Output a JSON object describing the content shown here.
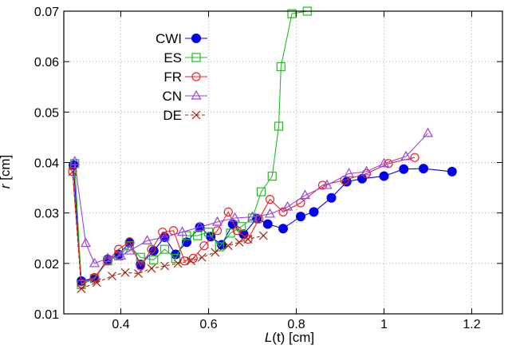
{
  "chart_data": {
    "type": "line",
    "xlabel_main": "L",
    "xlabel_arg": "(t)",
    "xlabel_unit": " [cm]",
    "ylabel_main": "r",
    "ylabel_unit": " [cm]",
    "xlim": [
      0.27,
      1.27
    ],
    "ylim": [
      0.01,
      0.07
    ],
    "x_ticks": [
      0.4,
      0.6,
      0.8,
      1.0,
      1.2
    ],
    "x_tick_labels": [
      "0.4",
      "0.6",
      "0.8",
      "1",
      "1.2"
    ],
    "y_ticks": [
      0.01,
      0.02,
      0.03,
      0.04,
      0.05,
      0.06,
      0.07
    ],
    "y_tick_labels": [
      "0.01",
      "0.02",
      "0.03",
      "0.04",
      "0.05",
      "0.06",
      "0.07"
    ],
    "grid": true,
    "legend_position": "top-left",
    "series": [
      {
        "name": "CWI",
        "color": "#0000ee",
        "marker": "filled-circle",
        "x": [
          0.292,
          0.31,
          0.34,
          0.37,
          0.395,
          0.42,
          0.445,
          0.475,
          0.5,
          0.525,
          0.55,
          0.58,
          0.605,
          0.63,
          0.655,
          0.68,
          0.71,
          0.735,
          0.77,
          0.81,
          0.84,
          0.88,
          0.915,
          0.95,
          1.0,
          1.045,
          1.09,
          1.155
        ],
        "y": [
          0.0395,
          0.0165,
          0.0171,
          0.0208,
          0.0218,
          0.0241,
          0.0198,
          0.0225,
          0.0252,
          0.0218,
          0.0242,
          0.0272,
          0.0253,
          0.0237,
          0.0278,
          0.0258,
          0.0289,
          0.0278,
          0.0269,
          0.0293,
          0.0302,
          0.033,
          0.0362,
          0.0368,
          0.0373,
          0.0387,
          0.0388,
          0.0382
        ]
      },
      {
        "name": "ES",
        "color": "#22bb22",
        "marker": "open-square",
        "x": [
          0.295,
          0.31,
          0.34,
          0.37,
          0.395,
          0.42,
          0.445,
          0.475,
          0.5,
          0.525,
          0.55,
          0.575,
          0.6,
          0.625,
          0.65,
          0.675,
          0.7,
          0.72,
          0.745,
          0.76,
          0.765,
          0.79,
          0.825
        ],
        "y": [
          0.0398,
          0.0158,
          0.017,
          0.0205,
          0.0215,
          0.0235,
          0.0212,
          0.0207,
          0.0228,
          0.021,
          0.0255,
          0.0255,
          0.0262,
          0.0233,
          0.026,
          0.0273,
          0.029,
          0.0342,
          0.0373,
          0.0472,
          0.059,
          0.0695,
          0.07
        ]
      },
      {
        "name": "FR",
        "color": "#ee2222",
        "marker": "open-circle",
        "x": [
          0.29,
          0.31,
          0.34,
          0.37,
          0.395,
          0.42,
          0.445,
          0.47,
          0.495,
          0.52,
          0.545,
          0.565,
          0.59,
          0.62,
          0.645,
          0.665,
          0.69,
          0.715,
          0.74,
          0.77,
          0.81,
          0.86,
          0.91,
          0.96,
          1.01,
          1.07
        ],
        "y": [
          0.0382,
          0.016,
          0.0172,
          0.0205,
          0.0228,
          0.0243,
          0.0195,
          0.0228,
          0.0262,
          0.0265,
          0.0205,
          0.021,
          0.0235,
          0.0265,
          0.0302,
          0.0265,
          0.0248,
          0.0288,
          0.0327,
          0.0302,
          0.032,
          0.0355,
          0.0365,
          0.0378,
          0.0398,
          0.041
        ]
      },
      {
        "name": "CN",
        "color": "#9944dd",
        "marker": "open-triangle",
        "x": [
          0.295,
          0.32,
          0.34,
          0.37,
          0.4,
          0.42,
          0.46,
          0.5,
          0.54,
          0.58,
          0.62,
          0.66,
          0.7,
          0.74,
          0.78,
          0.82,
          0.87,
          0.92,
          0.96,
          1.0,
          1.05,
          1.1
        ],
        "y": [
          0.0402,
          0.024,
          0.02,
          0.021,
          0.0215,
          0.0225,
          0.0245,
          0.0252,
          0.0262,
          0.0272,
          0.0282,
          0.029,
          0.0292,
          0.0298,
          0.0312,
          0.0335,
          0.0355,
          0.0378,
          0.0382,
          0.0398,
          0.0412,
          0.0458
        ]
      },
      {
        "name": "DE",
        "color": "#aa2211",
        "marker": "cross",
        "x": [
          0.29,
          0.31,
          0.345,
          0.38,
          0.41,
          0.44,
          0.47,
          0.5,
          0.53,
          0.56,
          0.585,
          0.615,
          0.645,
          0.67,
          0.69,
          0.725
        ],
        "y": [
          0.0382,
          0.015,
          0.0162,
          0.0175,
          0.0182,
          0.018,
          0.019,
          0.0195,
          0.02,
          0.0205,
          0.0212,
          0.0222,
          0.0235,
          0.0242,
          0.0248,
          0.0255
        ]
      }
    ]
  }
}
